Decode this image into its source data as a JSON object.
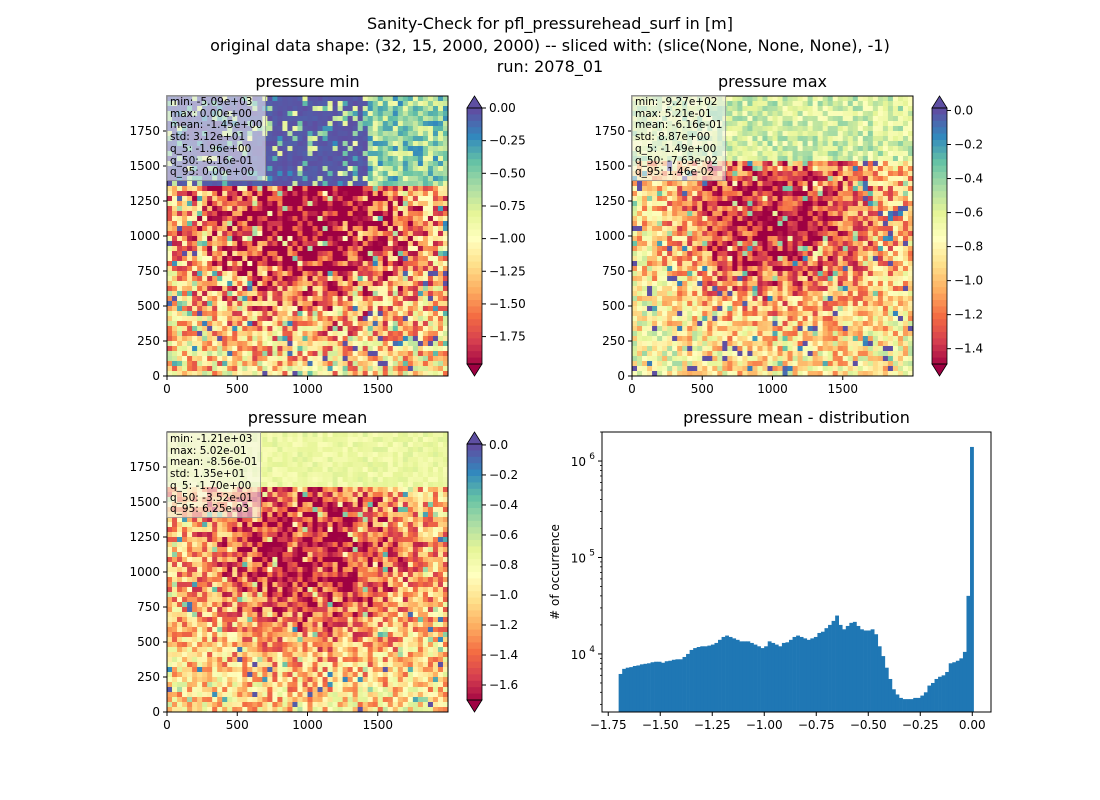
{
  "figure": {
    "title_lines": [
      "Sanity-Check for pfl_pressurehead_surf in [m]",
      "original data shape: (32, 15, 2000, 2000) -- sliced with: (slice(None, None, None), -1)",
      "run: 2078_01"
    ]
  },
  "colors": {
    "spectral": [
      "#9e0142",
      "#d53e4f",
      "#f46d43",
      "#fdae61",
      "#fee08b",
      "#ffffbf",
      "#e6f598",
      "#abdda4",
      "#66c2a5",
      "#3288bd",
      "#5e4fa2"
    ],
    "histogram_bar": "#1f77b4"
  },
  "panels": [
    {
      "id": "min",
      "title": "pressure min",
      "stats": [
        "min: -5.09e+03",
        "max: 0.00e+00",
        "mean: -1.45e+00",
        "std: 3.12e+01",
        "q_5: -1.96e+00",
        "q_50: -6.16e-01",
        "q_95: 0.00e+00"
      ],
      "colorbar": {
        "vmin": -1.96,
        "vmax": 0.0,
        "ticks": [
          0.0,
          -0.25,
          -0.5,
          -0.75,
          -1.0,
          -1.25,
          -1.5,
          -1.75
        ],
        "tick_labels": [
          "0.00",
          "−0.25",
          "−0.50",
          "−0.75",
          "−1.00",
          "−1.25",
          "−1.50",
          "−1.75"
        ],
        "extend": "both"
      },
      "x_ticks": [
        "0",
        "500",
        "1000",
        "1500"
      ],
      "y_ticks": [
        "0",
        "250",
        "500",
        "750",
        "1000",
        "1250",
        "1500",
        "1750"
      ]
    },
    {
      "id": "max",
      "title": "pressure max",
      "stats": [
        "min: -9.27e+02",
        "max: 5.21e-01",
        "mean: -6.16e-01",
        "std: 8.87e+00",
        "q_5: -1.49e+00",
        "q_50: -7.63e-02",
        "q_95: 1.46e-02"
      ],
      "colorbar": {
        "vmin": -1.49,
        "vmax": 0.0146,
        "ticks": [
          0.0,
          -0.2,
          -0.4,
          -0.6,
          -0.8,
          -1.0,
          -1.2,
          -1.4
        ],
        "tick_labels": [
          "0.0",
          "−0.2",
          "−0.4",
          "−0.6",
          "−0.8",
          "−1.0",
          "−1.2",
          "−1.4"
        ],
        "extend": "both"
      },
      "x_ticks": [
        "0",
        "500",
        "1000",
        "1500"
      ],
      "y_ticks": [
        "0",
        "250",
        "500",
        "750",
        "1000",
        "1250",
        "1500",
        "1750"
      ]
    },
    {
      "id": "mean",
      "title": "pressure mean",
      "stats": [
        "min: -1.21e+03",
        "max: 5.02e-01",
        "mean: -8.56e-01",
        "std: 1.35e+01",
        "q_5: -1.70e+00",
        "q_50: -3.52e-01",
        "q_95: 6.25e-03"
      ],
      "colorbar": {
        "vmin": -1.7,
        "vmax": 0.00625,
        "ticks": [
          0.0,
          -0.2,
          -0.4,
          -0.6,
          -0.8,
          -1.0,
          -1.2,
          -1.4,
          -1.6
        ],
        "tick_labels": [
          "0.0",
          "−0.2",
          "−0.4",
          "−0.6",
          "−0.8",
          "−1.0",
          "−1.2",
          "−1.4",
          "−1.6"
        ],
        "extend": "both"
      },
      "x_ticks": [
        "0",
        "500",
        "1000",
        "1500"
      ],
      "y_ticks": [
        "0",
        "250",
        "500",
        "750",
        "1000",
        "1250",
        "1500",
        "1750"
      ]
    }
  ],
  "chart_data": {
    "type": "bar",
    "title": "pressure mean - distribution",
    "xlabel": "",
    "ylabel": "# of occurrence",
    "yscale": "log",
    "xlim": [
      -1.78,
      0.09
    ],
    "ylim": [
      2500,
      2000000
    ],
    "x_ticks": [
      -1.75,
      -1.5,
      -1.25,
      -1.0,
      -0.75,
      -0.5,
      -0.25,
      0.0
    ],
    "x_tick_labels": [
      "−1.75",
      "−1.50",
      "−1.25",
      "−1.00",
      "−0.75",
      "−0.50",
      "−0.25",
      "0.00"
    ],
    "y_ticks": [
      10000,
      100000,
      1000000
    ],
    "y_tick_labels": [
      "10",
      "10",
      "10"
    ],
    "y_tick_exponents": [
      "4",
      "5",
      "6"
    ],
    "bins": {
      "start": -1.7,
      "end": 0.00625,
      "count": 100
    },
    "values": [
      6200,
      7000,
      7200,
      7300,
      7500,
      7600,
      7800,
      7900,
      8000,
      8200,
      8300,
      8300,
      8100,
      8400,
      8500,
      8700,
      8800,
      8800,
      9300,
      10000,
      11000,
      11500,
      11800,
      12000,
      12000,
      12200,
      12500,
      13000,
      14000,
      15000,
      15500,
      15000,
      14500,
      14000,
      13500,
      13500,
      13500,
      13000,
      12500,
      12000,
      11500,
      12000,
      13500,
      13000,
      12500,
      12000,
      13000,
      13200,
      14000,
      15000,
      15500,
      15000,
      14500,
      14000,
      14500,
      15000,
      16500,
      17000,
      18500,
      20000,
      22000,
      25000,
      20000,
      18000,
      19500,
      21000,
      21500,
      19500,
      18000,
      17500,
      17500,
      18000,
      16000,
      12000,
      9500,
      7200,
      5500,
      4300,
      3800,
      3500,
      3400,
      3400,
      3400,
      3500,
      3500,
      3700,
      4000,
      4700,
      5000,
      5500,
      5800,
      6000,
      6500,
      8000,
      8200,
      8500,
      9000,
      10500,
      40000,
      1400000
    ]
  }
}
